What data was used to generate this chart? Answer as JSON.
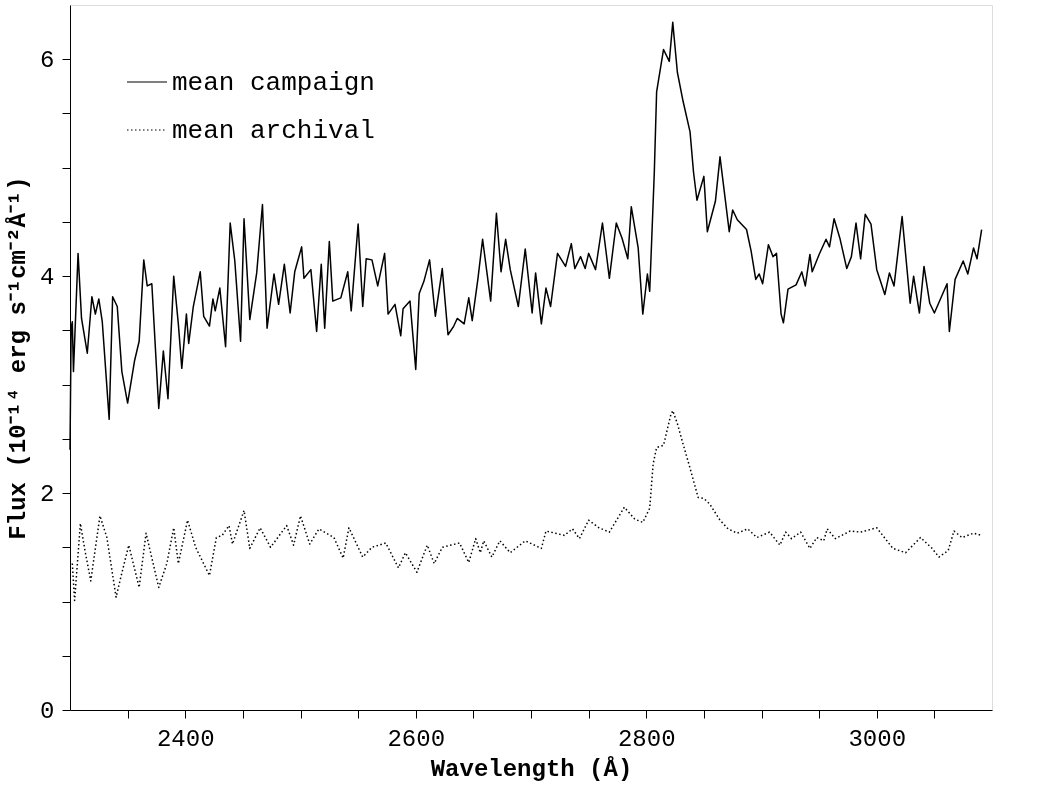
{
  "chart_data": {
    "type": "line",
    "xlabel": "Wavelength (Å)",
    "ylabel": "Flux (10⁻¹⁴ erg s⁻¹cm⁻²Å⁻¹)",
    "xlim": [
      2300,
      3100
    ],
    "ylim": [
      0,
      6.5
    ],
    "xticks": [
      {
        "value": 2350,
        "label": null
      },
      2400,
      {
        "value": 2450,
        "label": null
      },
      {
        "value": 2500,
        "label": null
      },
      {
        "value": 2550,
        "label": null
      },
      2600,
      {
        "value": 2650,
        "label": null
      },
      {
        "value": 2700,
        "label": null
      },
      {
        "value": 2750,
        "label": null
      },
      2800,
      {
        "value": 2850,
        "label": null
      },
      {
        "value": 2900,
        "label": null
      },
      {
        "value": 2950,
        "label": null
      },
      3000,
      {
        "value": 3050,
        "label": null
      }
    ],
    "yticks": [
      0,
      {
        "value": 0.5,
        "label": null
      },
      {
        "value": 1,
        "label": null
      },
      {
        "value": 1.5,
        "label": null
      },
      2,
      {
        "value": 2.5,
        "label": null
      },
      {
        "value": 3,
        "label": null
      },
      {
        "value": 3.5,
        "label": null
      },
      4,
      {
        "value": 4.5,
        "label": null
      },
      {
        "value": 5,
        "label": null
      },
      {
        "value": 5.5,
        "label": null
      },
      6
    ],
    "grid": false,
    "legend": "top left",
    "marker": "none",
    "series": [
      {
        "name": "mean campaign",
        "color": "#000000",
        "line_style": "solid",
        "x": [
          2300,
          2301,
          2302,
          2303,
          2307,
          2310,
          2315,
          2319,
          2322,
          2325,
          2328,
          2334,
          2337,
          2341,
          2345,
          2350,
          2356,
          2360,
          2364,
          2367,
          2371,
          2377,
          2381,
          2385,
          2390,
          2394,
          2397,
          2401,
          2403,
          2407,
          2413,
          2416,
          2421,
          2424,
          2426,
          2430,
          2435,
          2439,
          2443,
          2448,
          2451,
          2456,
          2462,
          2467,
          2471,
          2477,
          2481,
          2486,
          2491,
          2495,
          2501,
          2503,
          2509,
          2514,
          2518,
          2521,
          2525,
          2528,
          2535,
          2541,
          2544,
          2550,
          2554,
          2557,
          2562,
          2567,
          2573,
          2576,
          2582,
          2587,
          2589,
          2595,
          2600,
          2603,
          2607,
          2612,
          2617,
          2623,
          2628,
          2633,
          2636,
          2642,
          2646,
          2649,
          2654,
          2658,
          2665,
          2670,
          2674,
          2678,
          2682,
          2689,
          2695,
          2701,
          2704,
          2709,
          2713,
          2717,
          2723,
          2730,
          2735,
          2738,
          2743,
          2747,
          2750,
          2756,
          2762,
          2768,
          2774,
          2779,
          2784,
          2787,
          2793,
          2797,
          2801,
          2803,
          2807,
          2809,
          2815,
          2820,
          2823,
          2827,
          2832,
          2838,
          2841,
          2844,
          2850,
          2853,
          2860,
          2864,
          2872,
          2875,
          2879,
          2887,
          2891,
          2895,
          2898,
          2901,
          2906,
          2910,
          2913,
          2917,
          2919,
          2923,
          2930,
          2935,
          2938,
          2942,
          2944,
          2950,
          2956,
          2959,
          2963,
          2968,
          2974,
          2978,
          2982,
          2986,
          2990,
          2995,
          3000,
          3007,
          3011,
          3015,
          3022,
          3029,
          3032,
          3037,
          3041,
          3046,
          3050,
          3061,
          3063,
          3068,
          3075,
          3079,
          3084,
          3087,
          3091
        ],
        "values": [
          2.4,
          3.52,
          3.58,
          3.12,
          4.21,
          3.61,
          3.29,
          3.81,
          3.65,
          3.79,
          3.58,
          2.68,
          3.81,
          3.72,
          3.12,
          2.83,
          3.22,
          3.4,
          4.15,
          3.91,
          3.93,
          2.78,
          3.31,
          2.87,
          4.0,
          3.56,
          3.15,
          3.65,
          3.38,
          3.72,
          4.04,
          3.63,
          3.54,
          3.79,
          3.68,
          3.89,
          3.35,
          4.49,
          4.14,
          3.4,
          4.53,
          3.6,
          4.03,
          4.66,
          3.52,
          4.02,
          3.74,
          4.11,
          3.66,
          4.04,
          4.27,
          3.98,
          4.06,
          3.49,
          4.11,
          3.52,
          4.32,
          3.77,
          3.8,
          4.04,
          3.68,
          4.48,
          3.72,
          4.16,
          4.15,
          3.91,
          4.21,
          3.65,
          3.74,
          3.45,
          3.7,
          3.77,
          3.14,
          3.84,
          3.95,
          4.15,
          3.63,
          4.07,
          3.46,
          3.54,
          3.61,
          3.56,
          3.8,
          3.59,
          3.98,
          4.34,
          3.77,
          4.58,
          4.04,
          4.34,
          4.06,
          3.72,
          4.25,
          3.66,
          4.03,
          3.56,
          3.89,
          3.72,
          4.21,
          4.09,
          4.3,
          4.07,
          4.18,
          4.07,
          4.21,
          4.06,
          4.49,
          3.98,
          4.49,
          4.35,
          4.16,
          4.64,
          4.26,
          3.65,
          4.02,
          3.86,
          4.96,
          5.7,
          6.09,
          5.98,
          6.34,
          5.88,
          5.61,
          5.33,
          4.96,
          4.7,
          4.92,
          4.41,
          4.69,
          5.1,
          4.41,
          4.61,
          4.52,
          4.43,
          4.23,
          3.97,
          4.02,
          3.93,
          4.29,
          4.18,
          4.21,
          3.65,
          3.57,
          3.88,
          3.92,
          4.04,
          3.91,
          4.2,
          4.04,
          4.2,
          4.34,
          4.27,
          4.53,
          4.35,
          4.07,
          4.18,
          4.49,
          4.16,
          4.57,
          4.48,
          4.06,
          3.83,
          4.03,
          3.91,
          4.55,
          3.75,
          4.0,
          3.66,
          4.09,
          3.75,
          3.66,
          3.93,
          3.49,
          3.97,
          4.14,
          4.02,
          4.26,
          4.16,
          4.43
        ]
      },
      {
        "name": "mean archival",
        "color": "#000000",
        "line_style": "dotted",
        "x": [
          2302,
          2304,
          2309,
          2313,
          2318,
          2326,
          2332,
          2340,
          2344,
          2351,
          2360,
          2366,
          2377,
          2384,
          2390,
          2394,
          2402,
          2409,
          2421,
          2427,
          2432,
          2438,
          2441,
          2451,
          2456,
          2465,
          2474,
          2488,
          2494,
          2500,
          2508,
          2516,
          2529,
          2537,
          2542,
          2550,
          2554,
          2562,
          2574,
          2585,
          2591,
          2601,
          2610,
          2616,
          2623,
          2638,
          2646,
          2652,
          2656,
          2659,
          2666,
          2673,
          2682,
          2695,
          2709,
          2713,
          2729,
          2736,
          2742,
          2750,
          2759,
          2768,
          2781,
          2790,
          2797,
          2803,
          2806,
          2809,
          2815,
          2821,
          2823,
          2827,
          2832,
          2838,
          2845,
          2850,
          2855,
          2864,
          2871,
          2879,
          2888,
          2896,
          2907,
          2916,
          2921,
          2926,
          2934,
          2942,
          2948,
          2954,
          2957,
          2964,
          2977,
          2986,
          3000,
          3014,
          3025,
          3038,
          3048,
          3054,
          3062,
          3067,
          3074,
          3084,
          3091
        ],
        "values": [
          1.35,
          1.01,
          1.72,
          1.47,
          1.19,
          1.79,
          1.59,
          1.04,
          1.22,
          1.52,
          1.13,
          1.63,
          1.13,
          1.35,
          1.68,
          1.35,
          1.75,
          1.5,
          1.24,
          1.59,
          1.61,
          1.7,
          1.53,
          1.84,
          1.49,
          1.68,
          1.5,
          1.7,
          1.52,
          1.79,
          1.53,
          1.67,
          1.59,
          1.4,
          1.68,
          1.5,
          1.41,
          1.5,
          1.54,
          1.31,
          1.45,
          1.27,
          1.52,
          1.35,
          1.5,
          1.54,
          1.36,
          1.58,
          1.45,
          1.56,
          1.41,
          1.56,
          1.45,
          1.56,
          1.49,
          1.65,
          1.61,
          1.67,
          1.58,
          1.75,
          1.68,
          1.64,
          1.87,
          1.76,
          1.73,
          1.86,
          2.27,
          2.42,
          2.44,
          2.71,
          2.76,
          2.64,
          2.45,
          2.23,
          1.96,
          1.95,
          1.9,
          1.75,
          1.67,
          1.63,
          1.67,
          1.59,
          1.64,
          1.52,
          1.64,
          1.58,
          1.64,
          1.49,
          1.59,
          1.56,
          1.67,
          1.58,
          1.65,
          1.64,
          1.68,
          1.49,
          1.45,
          1.59,
          1.49,
          1.41,
          1.47,
          1.65,
          1.59,
          1.63,
          1.61
        ]
      }
    ]
  }
}
